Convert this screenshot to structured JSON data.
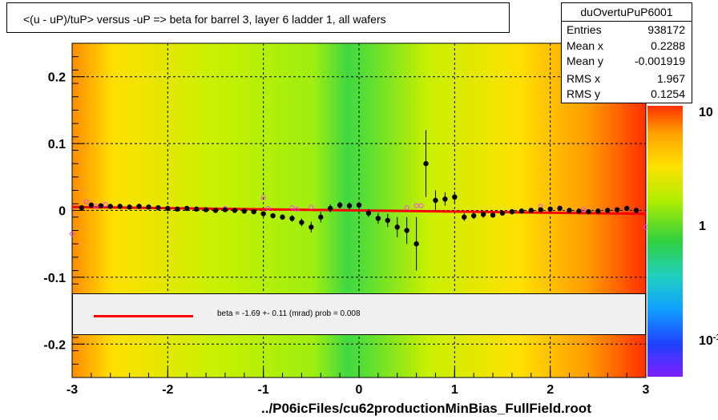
{
  "title": "<(u - uP)/tuP> versus  -uP => beta for barrel 3, layer 6 ladder 1, all wafers",
  "stats": {
    "name": "duOvertuPuP6001",
    "rows": [
      {
        "label": "Entries",
        "value": "938172"
      },
      {
        "label": "Mean x",
        "value": "0.2288"
      },
      {
        "label": "Mean y",
        "value": "-0.001919"
      },
      {
        "label": "RMS x",
        "value": "1.967"
      },
      {
        "label": "RMS y",
        "value": "0.1254"
      }
    ]
  },
  "fit": {
    "text": "beta =   -1.69 +-  0.11 (mrad) prob = 0.008",
    "color": "#ff0000"
  },
  "footer": "../P06icFiles/cu62productionMinBias_FullField.root",
  "chart_data": {
    "type": "heatmap",
    "title": "<(u - uP)/tuP> versus  -uP => beta for barrel 3, layer 6 ladder 1, all wafers",
    "xlim": [
      -3,
      3
    ],
    "ylim": [
      -0.25,
      0.25
    ],
    "x_ticks": [
      "-3",
      "-2",
      "-1",
      "0",
      "1",
      "2",
      "3"
    ],
    "y_ticks": [
      "0.2",
      "0.1",
      "0",
      "-0.1",
      "-0.2"
    ],
    "z_scale": "log",
    "z_ticks": [
      "10",
      "1",
      "10^-1"
    ],
    "grid": true,
    "fit_line": {
      "x": [
        -3,
        3
      ],
      "y": [
        0.0051,
        -0.0051
      ]
    },
    "profile": {
      "x": [
        -2.9,
        -2.8,
        -2.7,
        -2.6,
        -2.5,
        -2.4,
        -2.3,
        -2.2,
        -2.1,
        -2.0,
        -1.9,
        -1.8,
        -1.7,
        -1.6,
        -1.5,
        -1.4,
        -1.3,
        -1.2,
        -1.1,
        -1.0,
        -0.9,
        -0.8,
        -0.7,
        -0.6,
        -0.5,
        -0.4,
        -0.3,
        -0.2,
        -0.1,
        0.0,
        0.1,
        0.2,
        0.3,
        0.4,
        0.5,
        0.6,
        0.7,
        0.8,
        0.9,
        1.0,
        1.1,
        1.2,
        1.3,
        1.4,
        1.5,
        1.6,
        1.7,
        1.8,
        1.9,
        2.0,
        2.1,
        2.2,
        2.3,
        2.4,
        2.5,
        2.6,
        2.7,
        2.8,
        2.9
      ],
      "y": [
        0.004,
        0.008,
        0.007,
        0.006,
        0.006,
        0.005,
        0.006,
        0.005,
        0.004,
        0.003,
        0.002,
        0.003,
        0.002,
        0.001,
        0.0,
        0.001,
        0.0,
        -0.001,
        -0.002,
        -0.005,
        -0.008,
        -0.01,
        -0.012,
        -0.018,
        -0.025,
        -0.01,
        0.003,
        0.008,
        0.007,
        0.008,
        -0.004,
        -0.012,
        -0.015,
        -0.025,
        -0.03,
        -0.05,
        0.07,
        0.015,
        0.017,
        0.02,
        -0.01,
        -0.008,
        -0.006,
        -0.007,
        -0.004,
        -0.002,
        -0.001,
        0.0,
        0.001,
        0.002,
        0.003,
        0.0,
        -0.001,
        -0.002,
        -0.001,
        0.0,
        0.001,
        0.003,
        0.0
      ],
      "err": [
        0.003,
        0.003,
        0.003,
        0.003,
        0.003,
        0.003,
        0.003,
        0.003,
        0.003,
        0.003,
        0.003,
        0.003,
        0.003,
        0.003,
        0.003,
        0.003,
        0.003,
        0.003,
        0.003,
        0.003,
        0.004,
        0.004,
        0.005,
        0.006,
        0.008,
        0.008,
        0.006,
        0.005,
        0.005,
        0.005,
        0.006,
        0.008,
        0.01,
        0.015,
        0.02,
        0.04,
        0.05,
        0.015,
        0.01,
        0.008,
        0.006,
        0.005,
        0.005,
        0.004,
        0.004,
        0.004,
        0.003,
        0.003,
        0.003,
        0.003,
        0.003,
        0.003,
        0.003,
        0.003,
        0.003,
        0.003,
        0.003,
        0.003,
        0.003
      ]
    },
    "profile_secondary": {
      "x": [
        -3.0,
        -2.85,
        -2.75,
        -2.65,
        -1.4,
        -1.0,
        -0.95,
        -0.7,
        -0.65,
        -0.5,
        -0.2,
        0.5,
        0.6,
        0.65,
        1.9,
        2.1,
        2.35,
        3.0
      ],
      "y": [
        -0.035,
        0.013,
        0.006,
        0.009,
        0.003,
        0.019,
        0.003,
        0.004,
        0.002,
        0.005,
        0.007,
        0.004,
        0.007,
        0.007,
        0.006,
        0.004,
        0.001,
        -0.025
      ]
    }
  }
}
